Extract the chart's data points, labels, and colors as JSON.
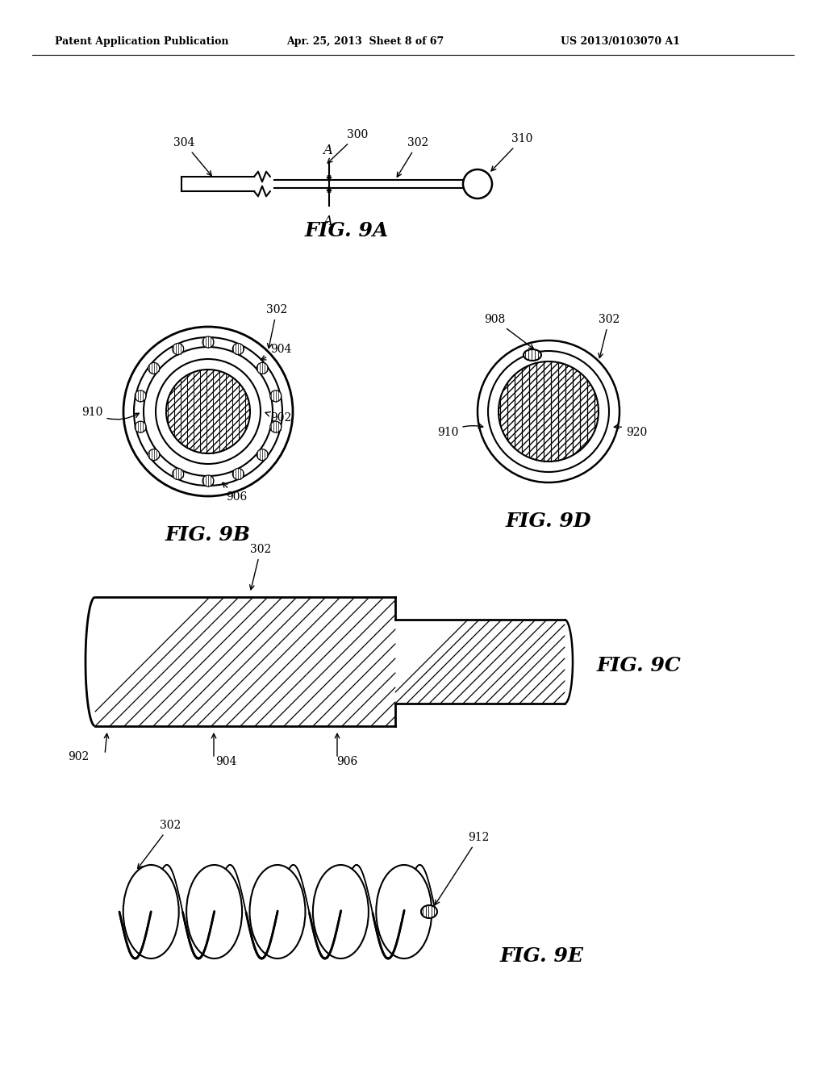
{
  "header_left": "Patent Application Publication",
  "header_mid": "Apr. 25, 2013  Sheet 8 of 67",
  "header_right": "US 2013/0103070 A1",
  "fig9a_label": "FIG. 9A",
  "fig9b_label": "FIG. 9B",
  "fig9c_label": "FIG. 9C",
  "fig9d_label": "FIG. 9D",
  "fig9e_label": "FIG. 9E",
  "bg_color": "#ffffff",
  "line_color": "#000000"
}
